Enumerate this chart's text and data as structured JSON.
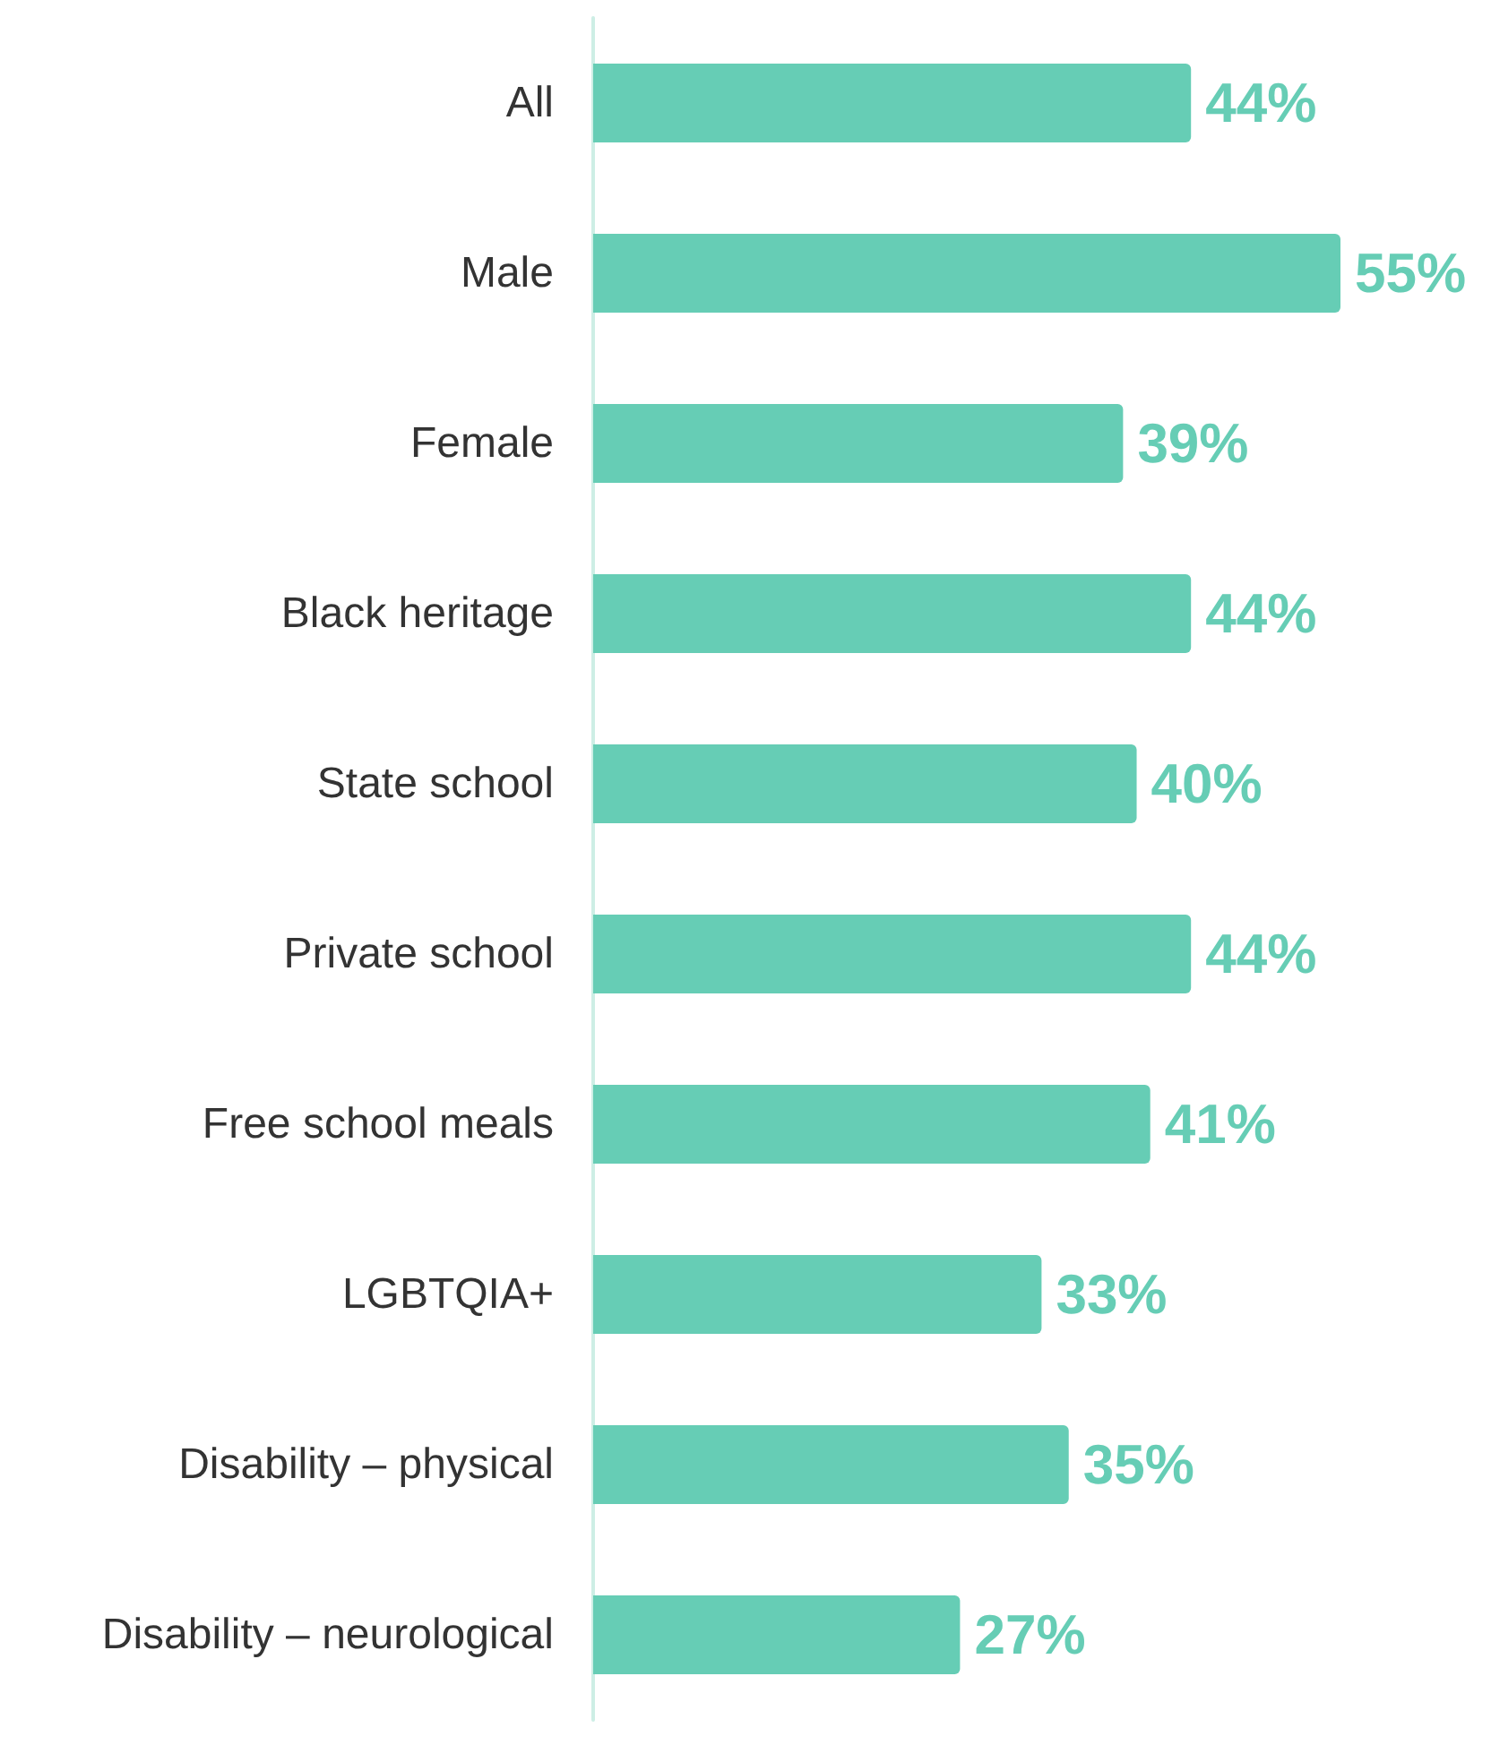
{
  "chart_data": {
    "type": "bar",
    "orientation": "horizontal",
    "categories": [
      "All",
      "Male",
      "Female",
      "Black heritage",
      "State school",
      "Private school",
      "Free school meals",
      "LGBTQIA+",
      "Disability – physical",
      "Disability – neurological"
    ],
    "values": [
      44,
      55,
      39,
      44,
      40,
      44,
      41,
      33,
      35,
      27
    ],
    "value_labels": [
      "44%",
      "55%",
      "39%",
      "44%",
      "40%",
      "44%",
      "41%",
      "33%",
      "35%",
      "27%"
    ],
    "color": "#66cdb5",
    "tick_labels": "y"
  }
}
